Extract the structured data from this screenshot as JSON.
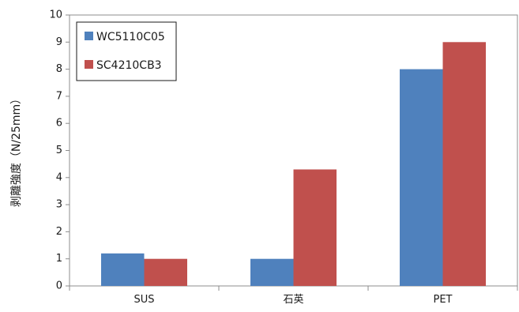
{
  "chart_data": {
    "type": "bar",
    "title": "",
    "xlabel": "",
    "ylabel": "剥離強度（N/25mm）",
    "ylim": [
      0,
      10
    ],
    "yticks": [
      "0",
      "1",
      "2",
      "3",
      "4",
      "5",
      "6",
      "7",
      "8",
      "9",
      "10"
    ],
    "grid": false,
    "legend_position": "top-left",
    "categories": [
      "SUS",
      "石英",
      "PET"
    ],
    "series": [
      {
        "name": "WC5110C05",
        "color": "#4f81bd",
        "values": [
          1.2,
          1.0,
          8.0
        ]
      },
      {
        "name": "SC4210CB3",
        "color": "#c0504d",
        "values": [
          1.0,
          4.3,
          9.0
        ]
      }
    ]
  }
}
